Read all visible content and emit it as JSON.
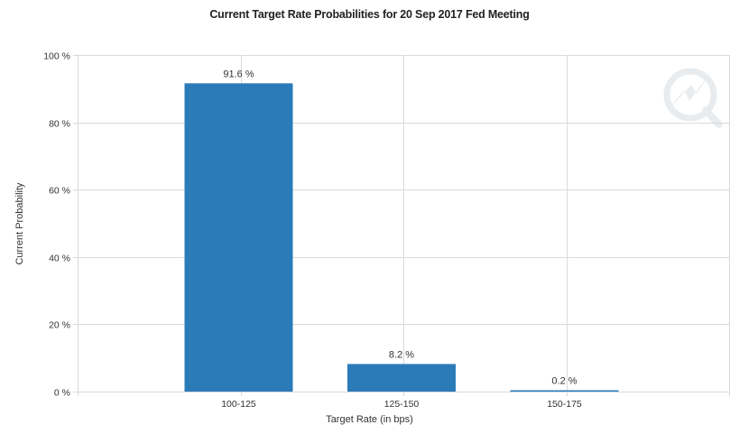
{
  "chart_data": {
    "type": "bar",
    "title": "Current Target Rate Probabilities for 20 Sep 2017 Fed Meeting",
    "xlabel": "Target Rate (in bps)",
    "ylabel": "Current Probability",
    "categories": [
      "100-125",
      "125-150",
      "150-175"
    ],
    "values": [
      91.6,
      8.2,
      0.2
    ],
    "data_labels": [
      "91.6 %",
      "8.2 %",
      "0.2 %"
    ],
    "ylim": [
      0,
      100
    ],
    "yticks": [
      0,
      20,
      40,
      60,
      80,
      100
    ],
    "ytick_labels": [
      "0 %",
      "20 %",
      "40 %",
      "60 %",
      "80 %",
      "100 %"
    ],
    "grid": true,
    "bar_color": "#2b7bb9",
    "grid_color": "#d9d9d9",
    "watermark_icon": "quikstrike-logo-icon"
  }
}
